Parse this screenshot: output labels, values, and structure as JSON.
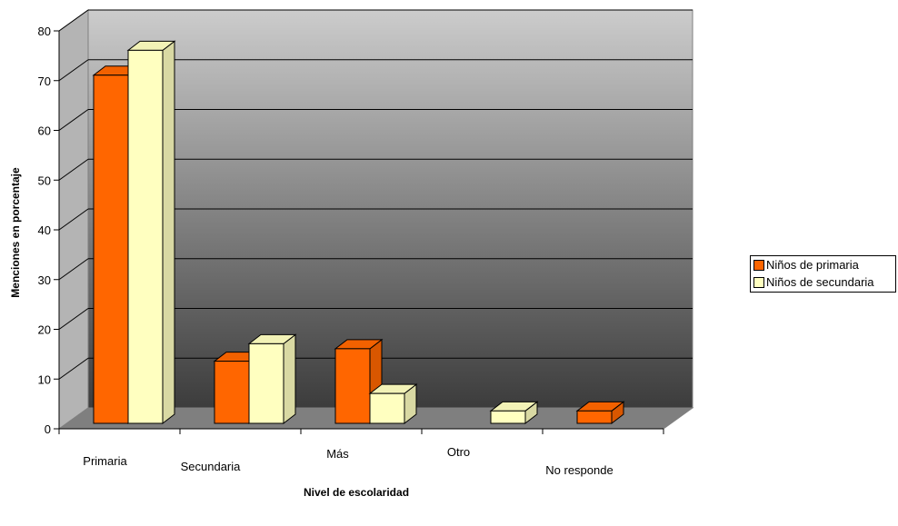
{
  "chart_data": {
    "type": "bar",
    "categories": [
      "Primaria",
      "Secundaria",
      "Más",
      "Otro",
      "No responde"
    ],
    "series": [
      {
        "name": "Niños de primaria",
        "values": [
          70,
          12.5,
          15,
          0,
          2.5
        ],
        "color": "#ff6600"
      },
      {
        "name": "Niños de secundaria",
        "values": [
          75,
          16,
          6,
          2.5,
          0
        ],
        "color": "#ffffc0"
      }
    ],
    "xlabel": "Nivel de escolaridad",
    "ylabel": "Menciones en porcentaje",
    "ylim": [
      0,
      80
    ],
    "yticks": [
      "0",
      "10",
      "20",
      "30",
      "40",
      "50",
      "60",
      "70",
      "80"
    ],
    "grid": true,
    "legend": "right",
    "style": "3d-clustered-column",
    "wall_gradient": [
      "#c8c8c8",
      "#404040"
    ],
    "floor_color": "#808080"
  }
}
